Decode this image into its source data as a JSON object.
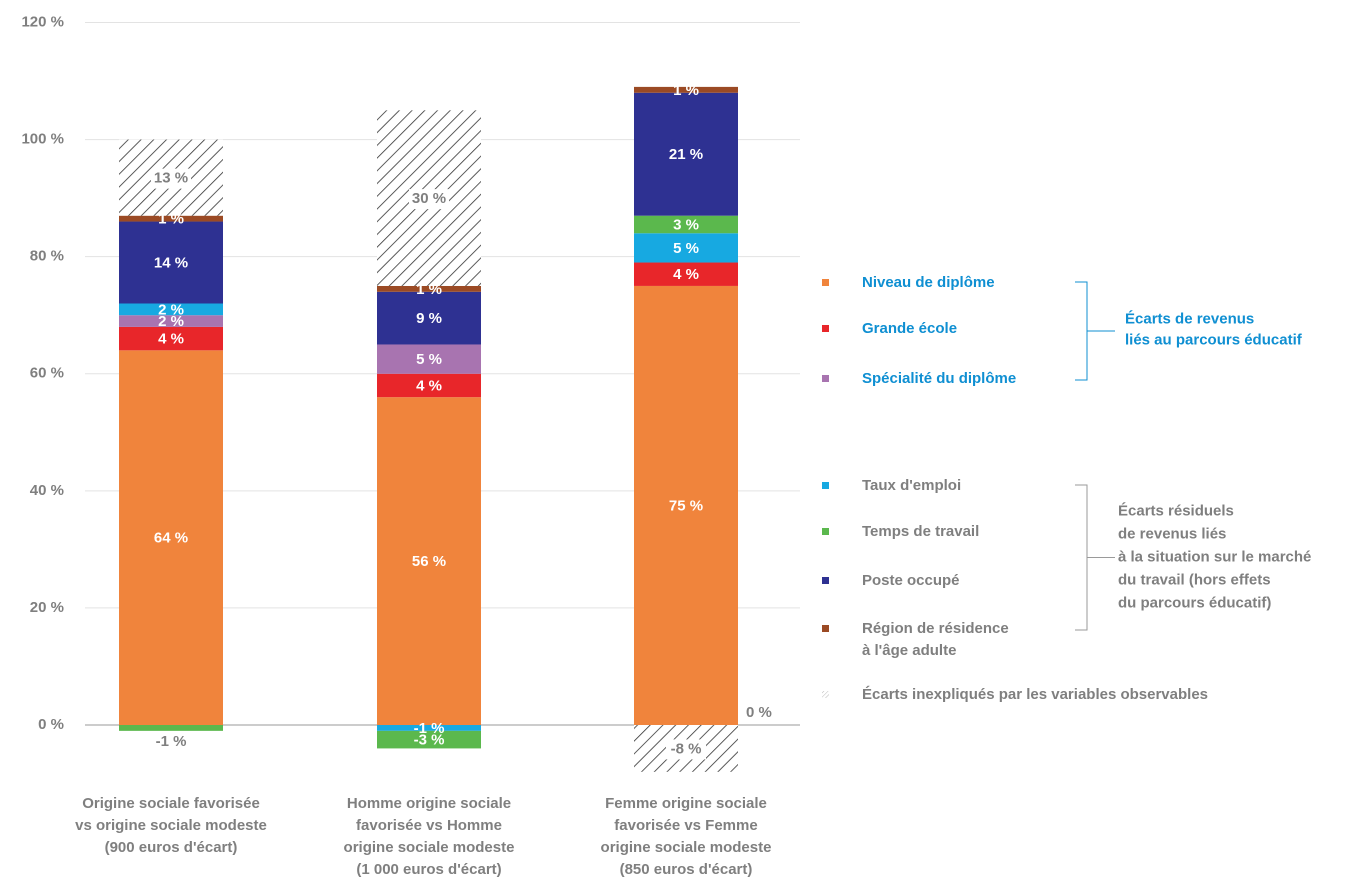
{
  "chart_data": {
    "type": "stacked-bar",
    "categories": [
      "Origine sociale favorisée\nvs origine sociale modeste\n(900 euros d'écart)",
      "Homme origine sociale\nfavorisée vs Homme\norigine sociale modeste\n(1 000 euros d'écart)",
      "Femme origine sociale\nfavorisée vs Femme\norigine sociale modeste\n(850 euros d'écart)"
    ],
    "series": [
      {
        "name": "Niveau de diplôme",
        "color": "#f0843c",
        "values": [
          64,
          56,
          75
        ],
        "value_labels": [
          "64 %",
          "56 %",
          "75 %"
        ]
      },
      {
        "name": "Grande école",
        "color": "#e8262a",
        "values": [
          4,
          4,
          4
        ],
        "value_labels": [
          "4 %",
          "4 %",
          "4 %"
        ]
      },
      {
        "name": "Spécialité du diplôme",
        "color": "#a874b0",
        "values": [
          2,
          5,
          0
        ],
        "value_labels": [
          "2 %",
          "5 %",
          "0 %"
        ]
      },
      {
        "name": "Taux d'emploi",
        "color": "#17a9e1",
        "values": [
          2,
          -1,
          5
        ],
        "value_labels": [
          "2 %",
          "-1 %",
          "5 %"
        ]
      },
      {
        "name": "Temps de travail",
        "color": "#5bb84d",
        "values": [
          -1,
          -3,
          3
        ],
        "value_labels": [
          "-1 %",
          "-3 %",
          "3 %"
        ]
      },
      {
        "name": "Poste occupé",
        "color": "#2e3192",
        "values": [
          14,
          9,
          21
        ],
        "value_labels": [
          "14 %",
          "9 %",
          "21 %"
        ]
      },
      {
        "name": "Région de résidence\nà l'âge adulte",
        "color": "#9b4a24",
        "values": [
          1,
          1,
          1
        ],
        "value_labels": [
          "1 %",
          "1 %",
          "1 %"
        ]
      },
      {
        "name": "Écarts inexpliqués par les variables observables",
        "color": "#333333",
        "hatched": true,
        "values": [
          13,
          30,
          -8
        ],
        "value_labels": [
          "13 %",
          "30 %",
          "-8 %"
        ]
      }
    ],
    "legend_groups": [
      {
        "label": "Écarts de revenus\nliés au parcours éducatif",
        "color": "#0f8fd2",
        "members": [
          0,
          1,
          2
        ]
      },
      {
        "label": "Écarts résiduels\nde revenus liés\nà la situation sur le marché\ndu travail (hors effets\ndu parcours éducatif)",
        "color": "#7f7f7f",
        "members": [
          3,
          4,
          5,
          6
        ]
      }
    ],
    "ylim": [
      -10,
      120
    ],
    "yticks": [
      {
        "value": 0,
        "label": "0 %"
      },
      {
        "value": 20,
        "label": "20 %"
      },
      {
        "value": 40,
        "label": "40 %"
      },
      {
        "value": 60,
        "label": "60 %"
      },
      {
        "value": 80,
        "label": "80 %"
      },
      {
        "value": 100,
        "label": "100 %"
      },
      {
        "value": 120,
        "label": "120 %"
      }
    ],
    "grid": true
  }
}
